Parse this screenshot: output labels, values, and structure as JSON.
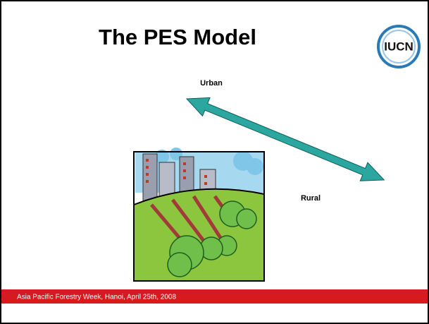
{
  "slide": {
    "title": "The PES Model",
    "logo": "IUCN",
    "labels": {
      "urban": "Urban",
      "rural": "Rural"
    },
    "footer": "Asia Pacific Forestry Week, Hanoi, April 25th, 2008"
  }
}
